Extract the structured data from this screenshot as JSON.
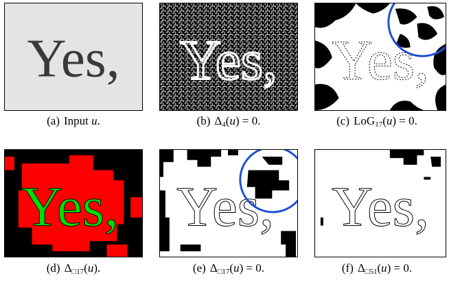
{
  "figure": {
    "panel_word": "Yes,",
    "panels": [
      {
        "tag": "(a)",
        "pre": "Input ",
        "var": "u",
        "post": "."
      },
      {
        "tag": "(b)",
        "pre": "Δ",
        "sub": "4",
        "mid": "(",
        "var": "u",
        "post": ") = 0."
      },
      {
        "tag": "(c)",
        "pre": "LoG",
        "sub": "17",
        "mid": "(",
        "var": "u",
        "post": ") = 0."
      },
      {
        "tag": "(d)",
        "pre": "Δ",
        "sub": "□17",
        "mid": "(",
        "var": "u",
        "post": ")."
      },
      {
        "tag": "(e)",
        "pre": "Δ",
        "sub": "□17",
        "mid": "(",
        "var": "u",
        "post": ") = 0."
      },
      {
        "tag": "(f)",
        "pre": "Δ",
        "sub": "□51",
        "mid": "(",
        "var": "u",
        "post": ") = 0."
      }
    ]
  },
  "colors": {
    "input_bg": "#e6e6e6",
    "input_text": "#3a3a3a",
    "region_red": "#ff0000",
    "region_green": "#00dd00",
    "highlight_circle": "#1f4fd8"
  }
}
